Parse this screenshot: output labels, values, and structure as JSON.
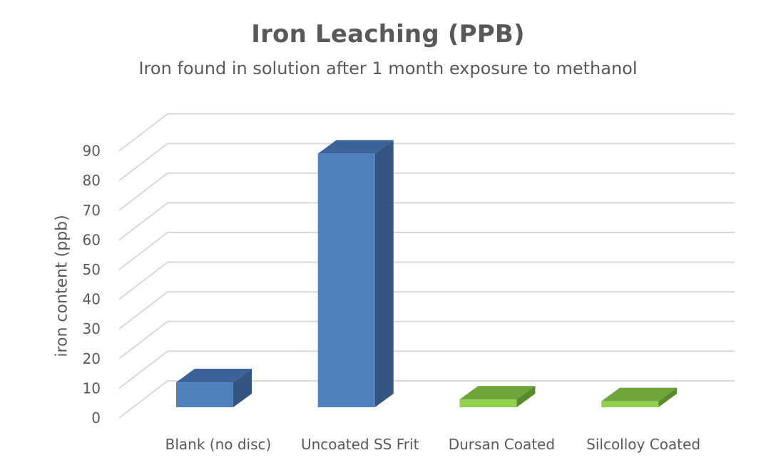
{
  "chart_data": {
    "type": "bar",
    "style": "3d-column",
    "title": "Iron Leaching  (PPB)",
    "subtitle": "Iron found in solution after 1 month exposure to methanol",
    "xlabel": "",
    "ylabel": "iron content (ppb)",
    "ylim": [
      0,
      90
    ],
    "yticks": [
      0,
      10,
      20,
      30,
      40,
      50,
      60,
      70,
      80,
      90
    ],
    "grid": true,
    "legend": null,
    "categories": [
      "Blank (no disc)",
      "Uncoated SS Frit",
      "Dursan Coated",
      "Silcolloy Coated"
    ],
    "values": [
      8.4,
      85.5,
      2.6,
      2.0
    ],
    "bar_colors": [
      {
        "front": "#4f81bd",
        "top": "#3b6398",
        "side": "#34557f"
      },
      {
        "front": "#4f81bd",
        "top": "#3b6398",
        "side": "#34557f"
      },
      {
        "front": "#92d050",
        "top": "#6fa53a",
        "side": "#5a8a2b"
      },
      {
        "front": "#92d050",
        "top": "#6fa53a",
        "side": "#5a8a2b"
      }
    ]
  },
  "colors": {
    "text": "#595959",
    "gridline": "#d9d9d9"
  }
}
